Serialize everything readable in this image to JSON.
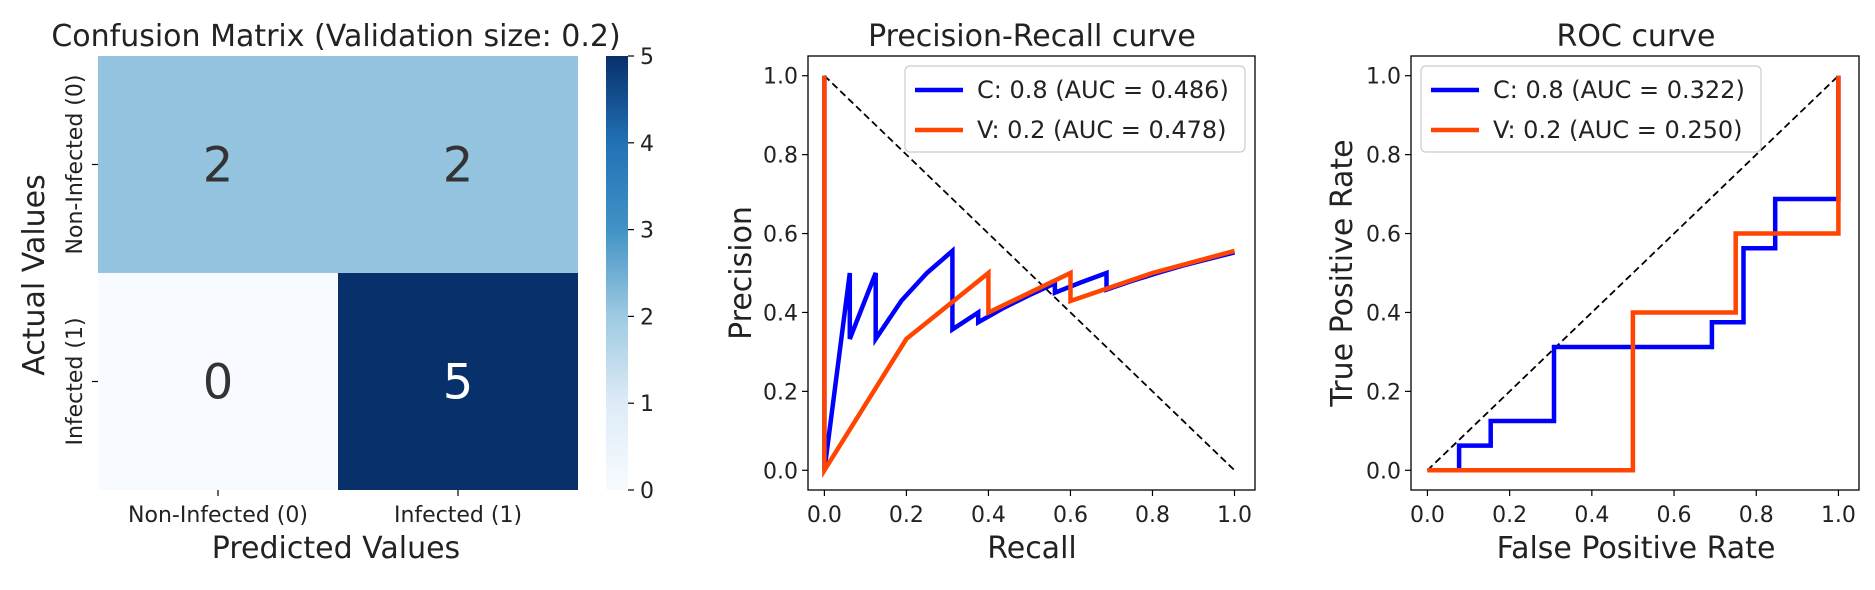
{
  "colors": {
    "blue_series": "#0000ff",
    "orange_series": "#ff4500",
    "diagonal": "#000000",
    "cmap_low": "#f7fbff",
    "cmap_high": "#08306b",
    "cell_text_dark": "#333333",
    "cell_text_light": "#ffffff"
  },
  "chart_data": [
    {
      "type": "heatmap",
      "title": "Confusion Matrix (Validation size: 0.2)",
      "xlabel": "Predicted Values",
      "ylabel": "Actual Values",
      "x_categories": [
        "Non-Infected (0)",
        "Infected (1)"
      ],
      "y_categories": [
        "Non-Infected (0)",
        "Infected (1)"
      ],
      "values": [
        [
          2,
          2
        ],
        [
          0,
          5
        ]
      ],
      "colorbar": {
        "min": 0,
        "max": 5,
        "ticks": [
          "0",
          "1",
          "2",
          "3",
          "4",
          "5"
        ]
      }
    },
    {
      "type": "line",
      "title": "Precision-Recall curve",
      "xlabel": "Recall",
      "ylabel": "Precision",
      "xlim": [
        -0.04,
        1.05
      ],
      "ylim": [
        -0.05,
        1.05
      ],
      "xticks": [
        "0.0",
        "0.2",
        "0.4",
        "0.6",
        "0.8",
        "1.0"
      ],
      "yticks": [
        "0.0",
        "0.2",
        "0.4",
        "0.6",
        "0.8",
        "1.0"
      ],
      "legend_position": "top-right",
      "diagonal": {
        "from": [
          0,
          1
        ],
        "to": [
          1,
          0
        ],
        "style": "dashed"
      },
      "series": [
        {
          "name": "C: 0.8 (AUC = 0.486)",
          "color": "#0000ff",
          "points": [
            [
              0,
              1.0
            ],
            [
              0,
              0
            ],
            [
              0.062,
              0.5
            ],
            [
              0.062,
              0.333
            ],
            [
              0.125,
              0.5
            ],
            [
              0.125,
              0.333
            ],
            [
              0.188,
              0.43
            ],
            [
              0.25,
              0.5
            ],
            [
              0.312,
              0.556
            ],
            [
              0.312,
              0.357
            ],
            [
              0.375,
              0.4
            ],
            [
              0.375,
              0.375
            ],
            [
              0.438,
              0.412
            ],
            [
              0.5,
              0.444
            ],
            [
              0.562,
              0.474
            ],
            [
              0.562,
              0.45
            ],
            [
              0.625,
              0.476
            ],
            [
              0.688,
              0.5
            ],
            [
              0.688,
              0.458
            ],
            [
              0.75,
              0.48
            ],
            [
              0.812,
              0.5
            ],
            [
              0.875,
              0.519
            ],
            [
              0.938,
              0.536
            ],
            [
              1.0,
              0.552
            ]
          ]
        },
        {
          "name": "V: 0.2 (AUC = 0.478)",
          "color": "#ff4500",
          "points": [
            [
              0,
              1.0
            ],
            [
              0,
              0
            ],
            [
              0.2,
              0.333
            ],
            [
              0.4,
              0.5
            ],
            [
              0.4,
              0.4
            ],
            [
              0.6,
              0.5
            ],
            [
              0.6,
              0.429
            ],
            [
              0.8,
              0.5
            ],
            [
              1.0,
              0.556
            ]
          ]
        }
      ]
    },
    {
      "type": "line",
      "title": "ROC curve",
      "xlabel": "False Positive Rate",
      "ylabel": "True Positive Rate",
      "xlim": [
        -0.04,
        1.05
      ],
      "ylim": [
        -0.05,
        1.05
      ],
      "xticks": [
        "0.0",
        "0.2",
        "0.4",
        "0.6",
        "0.8",
        "1.0"
      ],
      "yticks": [
        "0.0",
        "0.2",
        "0.4",
        "0.6",
        "0.8",
        "1.0"
      ],
      "legend_position": "top-left",
      "diagonal": {
        "from": [
          0,
          0
        ],
        "to": [
          1,
          1
        ],
        "style": "dashed"
      },
      "series": [
        {
          "name": "C: 0.8 (AUC = 0.322)",
          "color": "#0000ff",
          "points": [
            [
              0,
              0
            ],
            [
              0.077,
              0
            ],
            [
              0.077,
              0.0625
            ],
            [
              0.154,
              0.0625
            ],
            [
              0.154,
              0.125
            ],
            [
              0.308,
              0.125
            ],
            [
              0.308,
              0.3125
            ],
            [
              0.692,
              0.3125
            ],
            [
              0.692,
              0.375
            ],
            [
              0.769,
              0.375
            ],
            [
              0.769,
              0.5625
            ],
            [
              0.846,
              0.5625
            ],
            [
              0.846,
              0.6875
            ],
            [
              1.0,
              0.6875
            ],
            [
              1.0,
              1.0
            ]
          ]
        },
        {
          "name": "V: 0.2 (AUC = 0.250)",
          "color": "#ff4500",
          "points": [
            [
              0,
              0
            ],
            [
              0.5,
              0
            ],
            [
              0.5,
              0.4
            ],
            [
              0.75,
              0.4
            ],
            [
              0.75,
              0.6
            ],
            [
              1.0,
              0.6
            ],
            [
              1.0,
              1.0
            ]
          ]
        }
      ]
    }
  ]
}
